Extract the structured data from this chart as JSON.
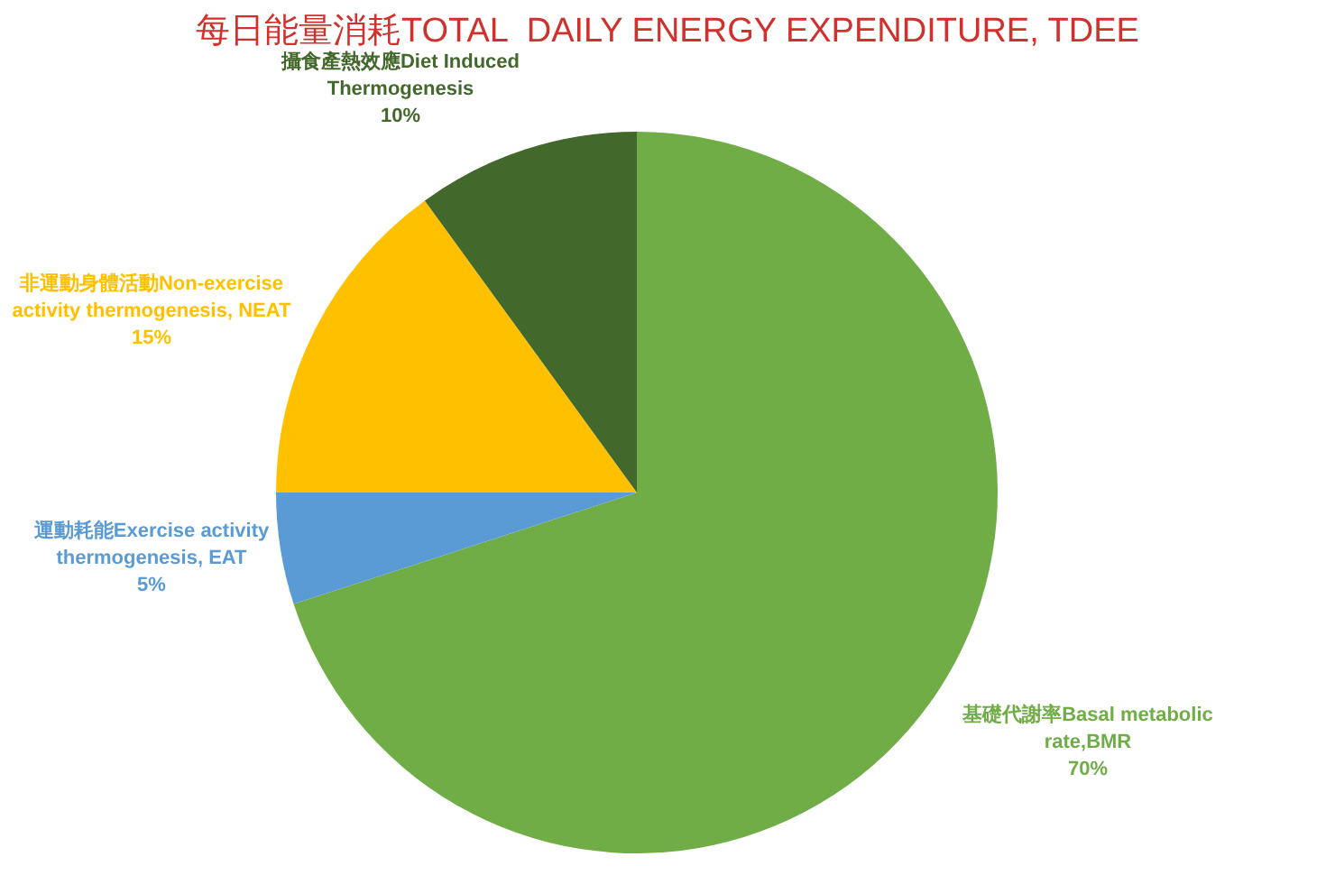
{
  "chart_data": {
    "type": "pie",
    "title": "每日能量消耗TOTAL  DAILY ENERGY EXPENDITURE, TDEE",
    "categories": [
      "基礎代謝率Basal metabolic rate,BMR",
      "運動耗能Exercise activity thermogenesis, EAT",
      "非運動身體活動Non-exercise activity thermogenesis, NEAT",
      "攝食產熱效應Diet Induced Thermogenesis"
    ],
    "values": [
      70,
      5,
      15,
      10
    ],
    "value_labels": [
      "70%",
      "5%",
      "15%",
      "10%"
    ],
    "colors": [
      "#70ad47",
      "#5b9bd5",
      "#ffc000",
      "#43682b"
    ],
    "legend": false
  }
}
